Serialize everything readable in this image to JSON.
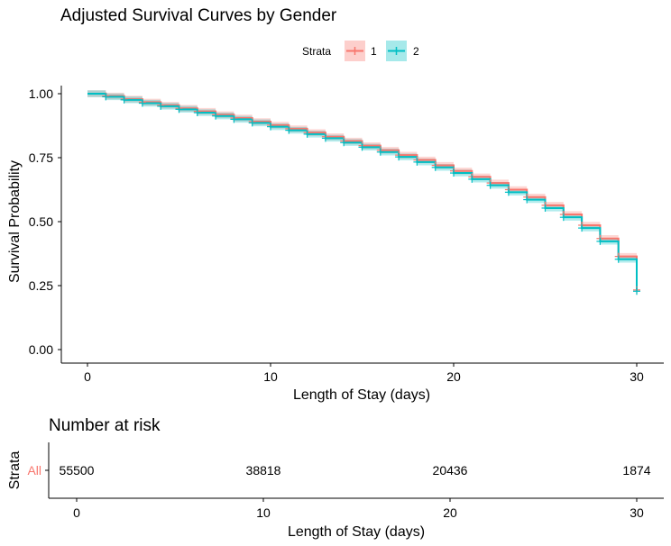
{
  "chart_data": [
    {
      "type": "line",
      "title": "Adjusted Survival Curves by Gender",
      "xlabel": "Length of Stay (days)",
      "ylabel": "Survival Probability",
      "xlim": [
        0,
        30
      ],
      "ylim": [
        0,
        1
      ],
      "x_ticks": [
        "0",
        "10",
        "20",
        "30"
      ],
      "y_ticks": [
        "0.00",
        "0.25",
        "0.50",
        "0.75",
        "1.00"
      ],
      "legend": {
        "title": "Strata",
        "placement": "top",
        "entries": [
          "1",
          "2"
        ]
      },
      "step": true,
      "confidence_band": true,
      "censor_marks": true,
      "grid": false,
      "series": [
        {
          "name": "1",
          "color": "#F8766D",
          "x": [
            0,
            1,
            2,
            3,
            4,
            5,
            6,
            7,
            8,
            9,
            10,
            11,
            12,
            13,
            14,
            15,
            16,
            17,
            18,
            19,
            20,
            21,
            22,
            23,
            24,
            25,
            26,
            27,
            28,
            29,
            30
          ],
          "y": [
            1.0,
            0.991,
            0.979,
            0.967,
            0.955,
            0.943,
            0.931,
            0.918,
            0.905,
            0.891,
            0.877,
            0.863,
            0.848,
            0.832,
            0.815,
            0.797,
            0.779,
            0.76,
            0.741,
            0.72,
            0.698,
            0.675,
            0.651,
            0.625,
            0.596,
            0.564,
            0.528,
            0.486,
            0.434,
            0.364,
            0.233
          ]
        },
        {
          "name": "2",
          "color": "#00BFC4",
          "x": [
            0,
            1,
            2,
            3,
            4,
            5,
            6,
            7,
            8,
            9,
            10,
            11,
            12,
            13,
            14,
            15,
            16,
            17,
            18,
            19,
            20,
            21,
            22,
            23,
            24,
            25,
            26,
            27,
            28,
            29,
            30
          ],
          "y": [
            1.0,
            0.988,
            0.976,
            0.963,
            0.951,
            0.939,
            0.926,
            0.913,
            0.9,
            0.886,
            0.871,
            0.857,
            0.842,
            0.826,
            0.809,
            0.791,
            0.772,
            0.753,
            0.733,
            0.712,
            0.69,
            0.666,
            0.642,
            0.615,
            0.586,
            0.553,
            0.517,
            0.475,
            0.423,
            0.353,
            0.228
          ]
        }
      ]
    },
    {
      "type": "table",
      "title": "Number at risk",
      "xlabel": "Length of Stay (days)",
      "ylabel": "Strata",
      "xlim": [
        0,
        30
      ],
      "x_ticks": [
        "0",
        "10",
        "20",
        "30"
      ],
      "rows": [
        {
          "label": "All",
          "label_color": "#F8766D",
          "x": [
            0,
            10,
            20,
            30
          ],
          "values": [
            "55500",
            "38818",
            "20436",
            "1874"
          ]
        }
      ]
    }
  ]
}
